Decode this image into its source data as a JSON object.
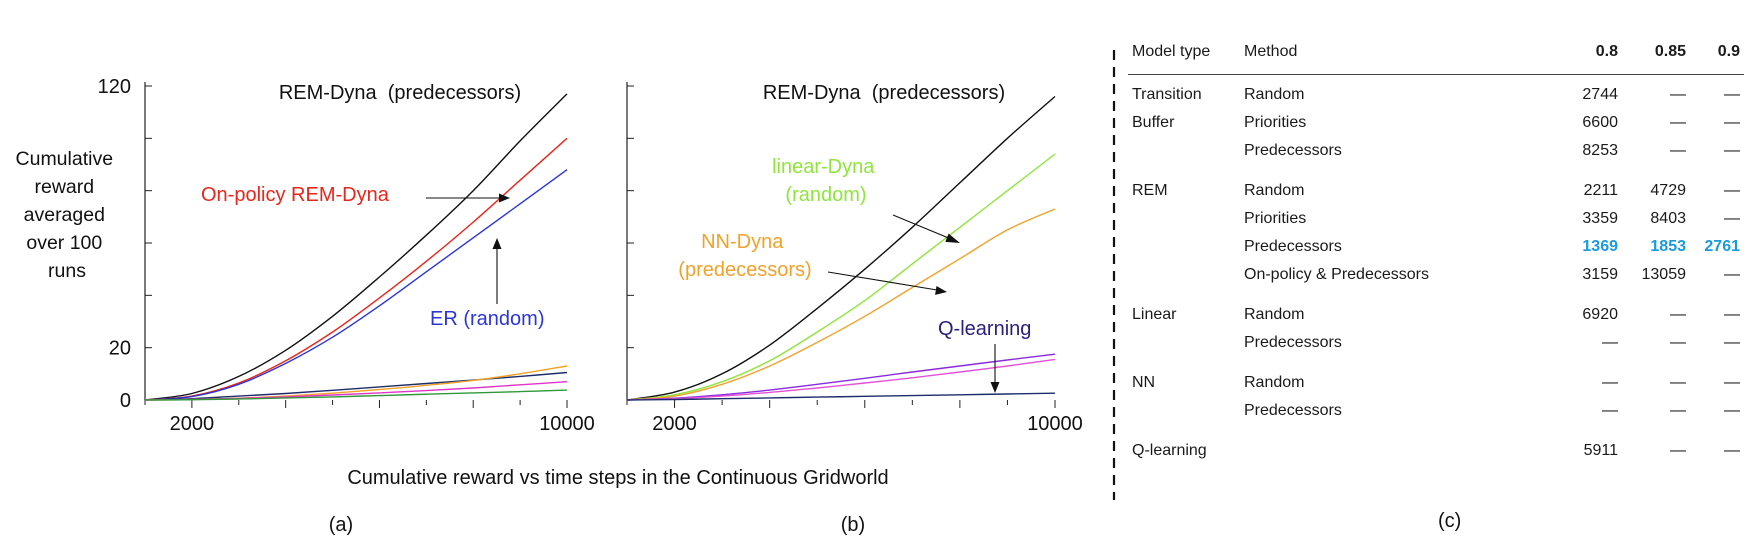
{
  "chart_data": [
    {
      "type": "line",
      "panel_label": "(a)",
      "title": "REM-Dyna  (predecessors)",
      "ylabel_lines": [
        "Cumulative",
        "reward",
        "averaged",
        "over 100",
        "runs"
      ],
      "xlim": [
        1000,
        10000
      ],
      "ylim": [
        0,
        120
      ],
      "x_ticks": [
        2000,
        10000
      ],
      "x_tick_labels": [
        "2000",
        "10000"
      ],
      "y_ticks": [
        0,
        20,
        120
      ],
      "y_tick_labels": [
        "0",
        "20",
        "120"
      ],
      "x": [
        1000,
        2000,
        3000,
        4000,
        5000,
        6000,
        7000,
        8000,
        9000,
        10000
      ],
      "series": [
        {
          "color": "#111111",
          "values": [
            0,
            2.5,
            9,
            19,
            32,
            47,
            63,
            80,
            99,
            117
          ]
        },
        {
          "color": "#e8261c",
          "values": [
            0,
            1.5,
            6.5,
            15,
            26,
            39,
            53,
            68,
            84,
            100
          ]
        },
        {
          "color": "#2b35d8",
          "values": [
            0,
            1.3,
            6,
            14,
            24,
            36,
            49,
            62,
            75,
            88
          ]
        },
        {
          "color": "#1d2d6b",
          "values": [
            0,
            0.5,
            1.5,
            2.5,
            3.7,
            5,
            6.3,
            7.6,
            9,
            10.5
          ]
        },
        {
          "color": "#f2a22a",
          "values": [
            0,
            0.2,
            0.7,
            1.5,
            2.6,
            4,
            5.6,
            7.5,
            10,
            13
          ]
        },
        {
          "color": "#e035c8",
          "values": [
            0,
            0.2,
            0.6,
            1.2,
            1.9,
            2.7,
            3.6,
            4.6,
            5.8,
            7
          ]
        },
        {
          "color": "#2e9a3a",
          "values": [
            0,
            0.1,
            0.4,
            0.8,
            1.2,
            1.7,
            2.2,
            2.7,
            3.2,
            3.8
          ]
        }
      ],
      "annotations": [
        {
          "text": "On-policy REM-Dyna",
          "color": "#e8261c"
        },
        {
          "text": "ER (random)",
          "color": "#2b35d8"
        }
      ]
    },
    {
      "type": "line",
      "panel_label": "(b)",
      "title": "REM-Dyna  (predecessors)",
      "xlim": [
        1000,
        10000
      ],
      "ylim": [
        0,
        120
      ],
      "x_ticks": [
        2000,
        10000
      ],
      "x_tick_labels": [
        "2000",
        "10000"
      ],
      "x": [
        1000,
        2000,
        3000,
        4000,
        5000,
        6000,
        7000,
        8000,
        9000,
        10000
      ],
      "series": [
        {
          "color": "#111111",
          "values": [
            0,
            3,
            10,
            21,
            35,
            50,
            66,
            83,
            100,
            116
          ]
        },
        {
          "color": "#8ee63c",
          "values": [
            0,
            2,
            7,
            15,
            26,
            38,
            52,
            66,
            80,
            94
          ]
        },
        {
          "color": "#f2a22a",
          "values": [
            0,
            1.5,
            6,
            13,
            22,
            32,
            43,
            54,
            65,
            73
          ]
        },
        {
          "color": "#8a2be0",
          "values": [
            0,
            0.7,
            2,
            3.8,
            6,
            8.3,
            10.7,
            13,
            15.3,
            17.5
          ]
        },
        {
          "color": "#e64fd8",
          "values": [
            0,
            0.5,
            1.5,
            2.9,
            4.6,
            6.5,
            8.5,
            10.7,
            13,
            15.5
          ]
        },
        {
          "color": "#1d2d6b",
          "values": [
            0,
            0.2,
            0.5,
            0.8,
            1.1,
            1.4,
            1.7,
            2,
            2.3,
            2.6
          ]
        }
      ],
      "annotations": [
        {
          "text_lines": [
            "linear-Dyna",
            "(random)"
          ],
          "color": "#8ee63c"
        },
        {
          "text_lines": [
            "NN-Dyna",
            "(predecessors)"
          ],
          "color": "#f2a22a"
        },
        {
          "text": "Q-learning",
          "color": "#2a1f7a"
        }
      ]
    }
  ],
  "shared_caption": "Cumulative reward vs time steps in the Continuous Gridworld",
  "table": {
    "panel_label": "(c)",
    "headers": [
      "Model type",
      "Method",
      "0.8",
      "0.85",
      "0.9"
    ],
    "rows": [
      {
        "model": "Transition",
        "method": "Random",
        "v08": "2744",
        "v085": "—",
        "v09": "—"
      },
      {
        "model": "Buffer",
        "method": "Priorities",
        "v08": "6600",
        "v085": "—",
        "v09": "—"
      },
      {
        "model": "",
        "method": "Predecessors",
        "v08": "8253",
        "v085": "—",
        "v09": "—"
      },
      {
        "model": "REM",
        "method": "Random",
        "v08": "2211",
        "v085": "4729",
        "v09": "—"
      },
      {
        "model": "",
        "method": "Priorities",
        "v08": "3359",
        "v085": "8403",
        "v09": "—"
      },
      {
        "model": "",
        "method": "Predecessors",
        "v08": "1369",
        "v085": "1853",
        "v09": "2761"
      },
      {
        "model": "",
        "method": "On-policy & Predecessors",
        "v08": "3159",
        "v085": "13059",
        "v09": "—"
      },
      {
        "model": "Linear",
        "method": "Random",
        "v08": "6920",
        "v085": "—",
        "v09": "—"
      },
      {
        "model": "",
        "method": "Predecessors",
        "v08": "—",
        "v085": "—",
        "v09": "—"
      },
      {
        "model": "NN",
        "method": "Random",
        "v08": "—",
        "v085": "—",
        "v09": "—"
      },
      {
        "model": "",
        "method": "Predecessors",
        "v08": "—",
        "v085": "—",
        "v09": "—"
      },
      {
        "model": "Q-learning",
        "method": "",
        "v08": "5911",
        "v085": "—",
        "v09": "—"
      }
    ],
    "highlight_color": "#1a9be0"
  }
}
